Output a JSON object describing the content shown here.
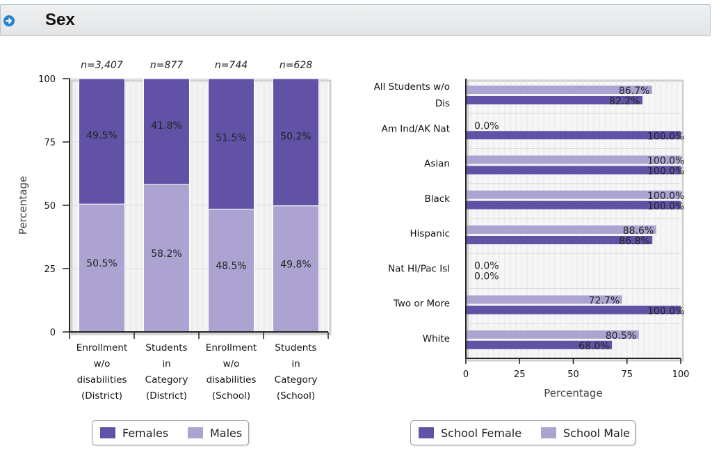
{
  "header": {
    "title": "Sex"
  },
  "colors": {
    "female": "#6252a6",
    "male": "#ada3d1",
    "header_icon": "#2a83c8"
  },
  "left_legend": {
    "items": [
      "Females",
      "Males"
    ]
  },
  "right_legend": {
    "items": [
      "School Female",
      "School Male"
    ]
  },
  "chart_data": [
    {
      "type": "bar",
      "stacked": true,
      "ylabel": "Percentage",
      "ylim": [
        0,
        100
      ],
      "yticks": [
        0,
        25,
        50,
        75,
        100
      ],
      "grid": true,
      "legend_position": "bottom",
      "categories": [
        [
          "Enrollment",
          "w/o",
          "disabilities",
          "(District)"
        ],
        [
          "Students",
          "in",
          "Category",
          "(District)"
        ],
        [
          "Enrollment",
          "w/o",
          "disabilities",
          "(School)"
        ],
        [
          "Students",
          "in",
          "Category",
          "(School)"
        ]
      ],
      "top_labels": [
        "n=3,407",
        "n=877",
        "n=744",
        "n=628"
      ],
      "series": [
        {
          "name": "Males",
          "values": [
            50.5,
            58.2,
            48.5,
            49.8
          ],
          "labels": [
            "50.5%",
            "58.2%",
            "48.5%",
            "49.8%"
          ]
        },
        {
          "name": "Females",
          "values": [
            49.5,
            41.8,
            51.5,
            50.2
          ],
          "labels": [
            "49.5%",
            "41.8%",
            "51.5%",
            "50.2%"
          ]
        }
      ]
    },
    {
      "type": "bar",
      "orientation": "horizontal",
      "xlabel": "Percentage",
      "xlim": [
        0,
        100
      ],
      "xticks": [
        0,
        25,
        50,
        75,
        100
      ],
      "grid": true,
      "legend_position": "bottom",
      "categories": [
        [
          "All Students w/o",
          "Dis"
        ],
        [
          "Am Ind/AK Nat"
        ],
        [
          "Asian"
        ],
        [
          "Black"
        ],
        [
          "Hispanic"
        ],
        [
          "Nat HI/Pac Isl"
        ],
        [
          "Two or More"
        ],
        [
          "White"
        ]
      ],
      "series": [
        {
          "name": "School Male",
          "values": [
            86.7,
            0,
            100,
            100,
            88.6,
            0,
            72.7,
            80.5
          ],
          "labels": [
            "86.7%",
            "0.0%",
            "100.0%",
            "100.0%",
            "88.6%",
            "0.0%",
            "72.7%",
            "80.5%"
          ]
        },
        {
          "name": "School Female",
          "values": [
            82.2,
            100,
            100,
            100,
            86.8,
            0,
            100,
            68.0
          ],
          "labels": [
            "82.2%",
            "100.0%",
            "100.0%",
            "100.0%",
            "86.8%",
            "0.0%",
            "100.0%",
            "68.0%"
          ]
        }
      ]
    }
  ]
}
